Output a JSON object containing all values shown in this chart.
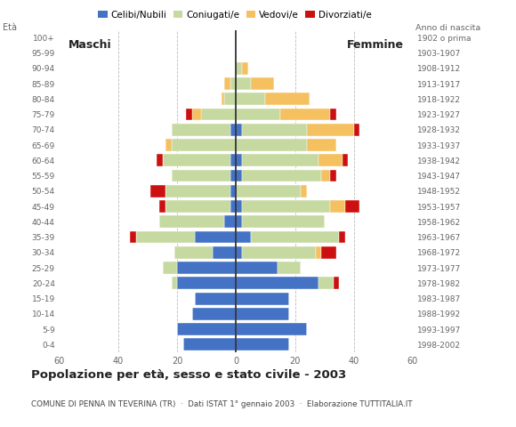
{
  "age_groups": [
    "0-4",
    "5-9",
    "10-14",
    "15-19",
    "20-24",
    "25-29",
    "30-34",
    "35-39",
    "40-44",
    "45-49",
    "50-54",
    "55-59",
    "60-64",
    "65-69",
    "70-74",
    "75-79",
    "80-84",
    "85-89",
    "90-94",
    "95-99",
    "100+"
  ],
  "birth_years": [
    "1998-2002",
    "1993-1997",
    "1988-1992",
    "1983-1987",
    "1978-1982",
    "1973-1977",
    "1968-1972",
    "1963-1967",
    "1958-1962",
    "1953-1957",
    "1948-1952",
    "1943-1947",
    "1938-1942",
    "1933-1937",
    "1928-1932",
    "1923-1927",
    "1918-1922",
    "1913-1917",
    "1908-1912",
    "1903-1907",
    "1902 o prima"
  ],
  "colors": {
    "celibe": "#4472C4",
    "coniugato": "#C5D9A0",
    "vedovo": "#F5C060",
    "divorziato": "#CC1010"
  },
  "males": {
    "celibe": [
      18,
      20,
      15,
      14,
      20,
      20,
      8,
      14,
      4,
      2,
      2,
      2,
      2,
      0,
      2,
      0,
      0,
      0,
      0,
      0,
      0
    ],
    "coniugato": [
      0,
      0,
      0,
      0,
      2,
      5,
      13,
      20,
      22,
      22,
      22,
      20,
      23,
      22,
      20,
      12,
      4,
      2,
      0,
      0,
      0
    ],
    "vedovo": [
      0,
      0,
      0,
      0,
      0,
      0,
      0,
      0,
      0,
      0,
      0,
      0,
      0,
      2,
      0,
      3,
      1,
      2,
      0,
      0,
      0
    ],
    "divorziato": [
      0,
      0,
      0,
      0,
      0,
      0,
      0,
      2,
      0,
      2,
      5,
      0,
      2,
      0,
      0,
      2,
      0,
      0,
      0,
      0,
      0
    ]
  },
  "females": {
    "nubile": [
      18,
      24,
      18,
      18,
      28,
      14,
      2,
      5,
      2,
      2,
      0,
      2,
      2,
      0,
      2,
      0,
      0,
      0,
      0,
      0,
      0
    ],
    "coniugata": [
      0,
      0,
      0,
      0,
      5,
      8,
      25,
      30,
      28,
      30,
      22,
      27,
      26,
      24,
      22,
      15,
      10,
      5,
      2,
      0,
      0
    ],
    "vedova": [
      0,
      0,
      0,
      0,
      0,
      0,
      2,
      0,
      0,
      5,
      2,
      3,
      8,
      10,
      16,
      17,
      15,
      8,
      2,
      0,
      0
    ],
    "divorziata": [
      0,
      0,
      0,
      0,
      2,
      0,
      5,
      2,
      0,
      5,
      0,
      2,
      2,
      0,
      2,
      2,
      0,
      0,
      0,
      0,
      0
    ]
  },
  "title": "Popolazione per età, sesso e stato civile - 2003",
  "subtitle": "COMUNE DI PENNA IN TEVERINA (TR)  ·  Dati ISTAT 1° gennaio 2003  ·  Elaborazione TUTTITALIA.IT",
  "label_maschi": "Maschi",
  "label_femmine": "Femmine",
  "label_eta": "Età",
  "label_anno": "Anno di nascita",
  "legend_labels": [
    "Celibi/Nubili",
    "Coniugati/e",
    "Vedovi/e",
    "Divorziati/e"
  ],
  "xlim": 60,
  "bg_color": "#FFFFFF",
  "grid_color": "#BBBBBB",
  "center_line_color": "#333333",
  "tick_color": "#666666"
}
